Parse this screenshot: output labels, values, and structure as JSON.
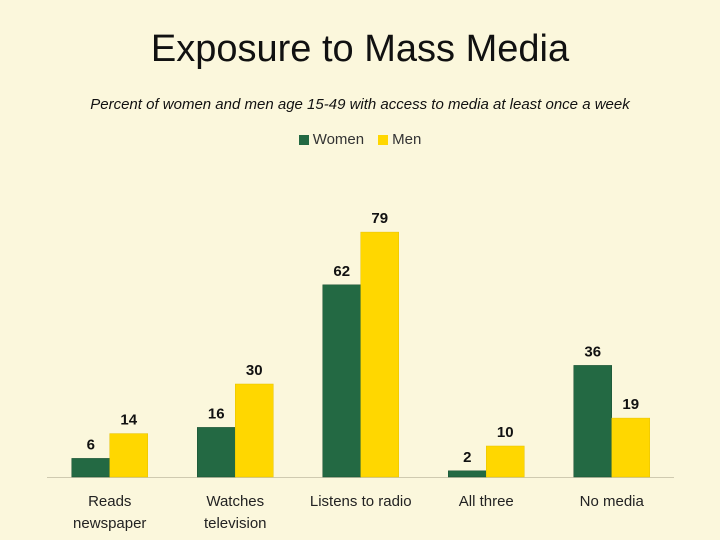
{
  "chart_data": {
    "type": "bar",
    "title": "Exposure to Mass Media",
    "subtitle": "Percent of women and men age 15-49 with access to media at least once a week",
    "categories": [
      [
        "Reads",
        "newspaper"
      ],
      [
        "Watches",
        "television"
      ],
      [
        "Listens to radio"
      ],
      [
        "All three"
      ],
      [
        "No media"
      ]
    ],
    "series": [
      {
        "name": "Women",
        "color": "#236943",
        "values": [
          6,
          16,
          62,
          2,
          36
        ]
      },
      {
        "name": "Men",
        "color": "#ffd700",
        "values": [
          14,
          30,
          79,
          10,
          19
        ]
      }
    ],
    "ylim": [
      0,
      100
    ],
    "legend_position": "top-center",
    "grid": false
  }
}
